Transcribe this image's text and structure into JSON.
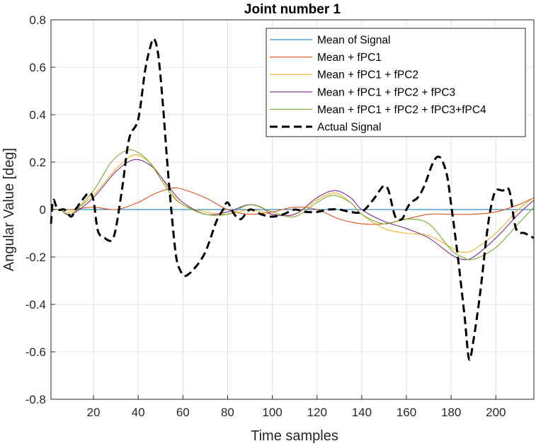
{
  "chart_data": {
    "type": "line",
    "title": "Joint number 1",
    "xlabel": "Time samples",
    "ylabel": "Angular Value [deg]",
    "xlim": [
      1,
      217
    ],
    "ylim": [
      -0.8,
      0.8
    ],
    "xticks": [
      20,
      40,
      60,
      80,
      100,
      120,
      140,
      160,
      180,
      200
    ],
    "yticks": [
      -0.8,
      -0.6,
      -0.4,
      -0.2,
      0,
      0.2,
      0.4,
      0.6,
      0.8
    ],
    "xtick_labels": [
      "20",
      "40",
      "60",
      "80",
      "100",
      "120",
      "140",
      "160",
      "180",
      "200"
    ],
    "ytick_labels": [
      "-0.8",
      "-0.6",
      "-0.4",
      "-0.2",
      "0",
      "0.2",
      "0.4",
      "0.6",
      "0.8"
    ],
    "grid": true,
    "legend_position": "top-right",
    "series": [
      {
        "name": "Mean of Signal",
        "color": "#0072BD",
        "style": "solid",
        "x": [
          1,
          217
        ],
        "y": [
          0,
          0
        ]
      },
      {
        "name": "Mean + fPC1",
        "color": "#D95319",
        "style": "solid",
        "x": [
          1,
          10,
          20,
          30,
          40,
          47,
          55,
          60,
          70,
          80,
          90,
          100,
          110,
          120,
          130,
          140,
          150,
          160,
          170,
          180,
          190,
          200,
          210,
          217
        ],
        "y": [
          0.0,
          0.0,
          0.01,
          0.0,
          0.03,
          0.065,
          0.09,
          0.085,
          0.05,
          0.0,
          -0.02,
          -0.01,
          0.01,
          0.0,
          -0.04,
          -0.06,
          -0.06,
          -0.04,
          -0.02,
          -0.02,
          -0.02,
          -0.01,
          0.02,
          0.05
        ]
      },
      {
        "name": "Mean + fPC1 + fPC2",
        "color": "#EDB120",
        "style": "solid",
        "x": [
          1,
          5,
          10,
          20,
          30,
          38,
          45,
          50,
          55,
          60,
          70,
          80,
          90,
          100,
          110,
          120,
          128,
          135,
          140,
          150,
          160,
          170,
          180,
          185,
          190,
          200,
          210,
          217
        ],
        "y": [
          0.0,
          0.0,
          -0.01,
          0.06,
          0.17,
          0.23,
          0.2,
          0.14,
          0.07,
          0.02,
          -0.01,
          -0.02,
          0.0,
          -0.02,
          -0.02,
          0.04,
          0.07,
          0.03,
          -0.02,
          -0.08,
          -0.1,
          -0.11,
          -0.16,
          -0.18,
          -0.17,
          -0.1,
          0.0,
          0.05
        ]
      },
      {
        "name": "Mean + fPC1 + fPC2 + fPC3",
        "color": "#7E2F8E",
        "style": "solid",
        "x": [
          1,
          5,
          10,
          20,
          30,
          38,
          45,
          50,
          55,
          60,
          70,
          80,
          89,
          95,
          100,
          110,
          120,
          128,
          135,
          140,
          150,
          160,
          170,
          180,
          185,
          190,
          200,
          210,
          217
        ],
        "y": [
          0.0,
          0.0,
          -0.02,
          0.05,
          0.16,
          0.21,
          0.19,
          0.14,
          0.08,
          0.03,
          -0.02,
          -0.01,
          0.02,
          0.01,
          -0.02,
          -0.02,
          0.05,
          0.08,
          0.05,
          0.0,
          -0.05,
          -0.08,
          -0.12,
          -0.19,
          -0.21,
          -0.2,
          -0.12,
          -0.02,
          0.04
        ]
      },
      {
        "name": "Mean + fPC1 + fPC2 + fPC3+fPC4",
        "color": "#77AC30",
        "style": "solid",
        "x": [
          1,
          5,
          10,
          20,
          28,
          35,
          40,
          45,
          50,
          55,
          60,
          70,
          80,
          90,
          100,
          110,
          120,
          127,
          135,
          140,
          150,
          160,
          170,
          180,
          185,
          190,
          200,
          210,
          217
        ],
        "y": [
          0.0,
          0.0,
          -0.02,
          0.08,
          0.2,
          0.25,
          0.24,
          0.2,
          0.13,
          0.06,
          0.02,
          -0.02,
          -0.02,
          0.02,
          -0.01,
          -0.03,
          0.03,
          0.06,
          0.03,
          -0.02,
          -0.06,
          -0.04,
          -0.06,
          -0.17,
          -0.2,
          -0.21,
          -0.16,
          -0.06,
          0.01
        ]
      },
      {
        "name": "Actual Signal",
        "color": "#000000",
        "style": "dashed",
        "x": [
          1,
          2,
          4,
          7,
          10,
          12,
          15,
          18,
          20,
          22,
          25,
          28,
          30,
          33,
          36,
          40,
          43,
          45,
          47,
          49,
          51,
          53,
          55,
          57,
          59,
          61,
          65,
          70,
          75,
          78,
          80,
          83,
          86,
          90,
          95,
          100,
          105,
          110,
          115,
          120,
          125,
          130,
          135,
          140,
          145,
          148,
          150,
          152,
          155,
          158,
          160,
          162,
          165,
          168,
          172,
          175,
          178,
          180,
          183,
          186,
          188,
          190,
          193,
          196,
          198,
          200,
          203,
          206,
          209,
          213,
          217
        ],
        "y": [
          -0.06,
          0.04,
          0.0,
          0.0,
          -0.03,
          0.0,
          0.04,
          0.07,
          0.04,
          -0.09,
          -0.12,
          -0.13,
          -0.08,
          0.1,
          0.3,
          0.38,
          0.58,
          0.67,
          0.72,
          0.65,
          0.45,
          0.2,
          -0.02,
          -0.2,
          -0.26,
          -0.28,
          -0.25,
          -0.18,
          -0.05,
          0.0,
          0.03,
          -0.02,
          -0.04,
          0.0,
          -0.02,
          -0.03,
          -0.02,
          0.0,
          -0.01,
          -0.01,
          0.0,
          0.0,
          -0.01,
          -0.01,
          0.04,
          0.08,
          0.1,
          0.08,
          -0.03,
          -0.04,
          0.0,
          0.03,
          0.05,
          0.1,
          0.2,
          0.22,
          0.15,
          0.02,
          -0.2,
          -0.45,
          -0.63,
          -0.55,
          -0.35,
          -0.1,
          0.02,
          0.08,
          0.08,
          0.08,
          -0.08,
          -0.1,
          -0.12
        ]
      }
    ]
  }
}
